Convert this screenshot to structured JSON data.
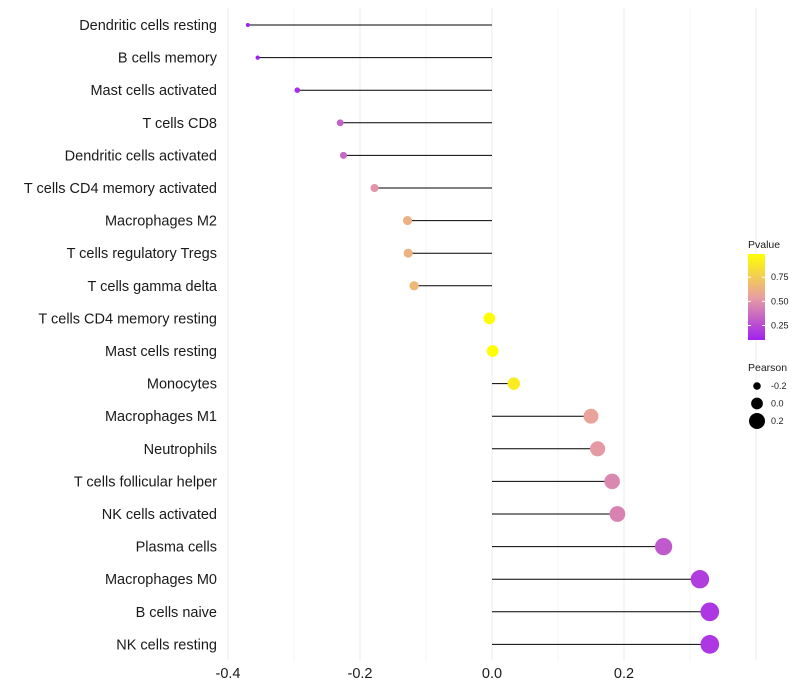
{
  "chart_data": {
    "type": "lollipop",
    "title": "",
    "xlabel": "",
    "ylabel": "",
    "xlim": [
      -0.4,
      0.35
    ],
    "x_ticks": [
      {
        "value": -0.4,
        "label": "-0.4"
      },
      {
        "value": -0.2,
        "label": "-0.2"
      },
      {
        "value": 0.0,
        "label": "0.0"
      },
      {
        "value": 0.2,
        "label": "0.2"
      }
    ],
    "baseline": 0,
    "points": [
      {
        "label": "Dendritic cells resting",
        "pearson": -0.37,
        "pvalue": 0.05
      },
      {
        "label": "B cells memory",
        "pearson": -0.355,
        "pvalue": 0.07
      },
      {
        "label": "Mast cells activated",
        "pearson": -0.295,
        "pvalue": 0.15
      },
      {
        "label": "T cells CD8",
        "pearson": -0.23,
        "pvalue": 0.33
      },
      {
        "label": "Dendritic cells activated",
        "pearson": -0.225,
        "pvalue": 0.35
      },
      {
        "label": "T cells CD4 memory activated",
        "pearson": -0.178,
        "pvalue": 0.5
      },
      {
        "label": "Macrophages M2",
        "pearson": -0.128,
        "pvalue": 0.62
      },
      {
        "label": "T cells regulatory  Tregs ",
        "pearson": -0.127,
        "pvalue": 0.63
      },
      {
        "label": "T cells gamma delta",
        "pearson": -0.118,
        "pvalue": 0.66
      },
      {
        "label": "T cells CD4 memory resting",
        "pearson": -0.004,
        "pvalue": 0.98
      },
      {
        "label": "Mast cells resting",
        "pearson": 0.001,
        "pvalue": 0.99
      },
      {
        "label": "Monocytes",
        "pearson": 0.033,
        "pvalue": 0.9
      },
      {
        "label": "Macrophages M1",
        "pearson": 0.15,
        "pvalue": 0.56
      },
      {
        "label": "Neutrophils",
        "pearson": 0.16,
        "pvalue": 0.52
      },
      {
        "label": "T cells follicular helper",
        "pearson": 0.182,
        "pvalue": 0.46
      },
      {
        "label": "NK cells activated",
        "pearson": 0.19,
        "pvalue": 0.44
      },
      {
        "label": "Plasma cells",
        "pearson": 0.26,
        "pvalue": 0.3
      },
      {
        "label": "Macrophages M0",
        "pearson": 0.315,
        "pvalue": 0.2
      },
      {
        "label": "B cells naive",
        "pearson": 0.33,
        "pvalue": 0.18
      },
      {
        "label": "NK cells resting",
        "pearson": 0.33,
        "pvalue": 0.18
      }
    ],
    "legend": {
      "color": {
        "title": "Pvalue",
        "range": [
          0.1,
          0.99
        ],
        "ticks": [
          {
            "value": 0.75,
            "label": "0.75"
          },
          {
            "value": 0.5,
            "label": "0.50"
          },
          {
            "value": 0.25,
            "label": "0.25"
          }
        ],
        "low_color": "#a020f0",
        "mid_color": "#e8a0a0",
        "high_color": "#ffff00"
      },
      "size": {
        "title": "Pearson",
        "entries": [
          {
            "value": -0.2,
            "label": "-0.2"
          },
          {
            "value": 0.0,
            "label": "0.0"
          },
          {
            "value": 0.2,
            "label": "0.2"
          }
        ]
      }
    }
  }
}
